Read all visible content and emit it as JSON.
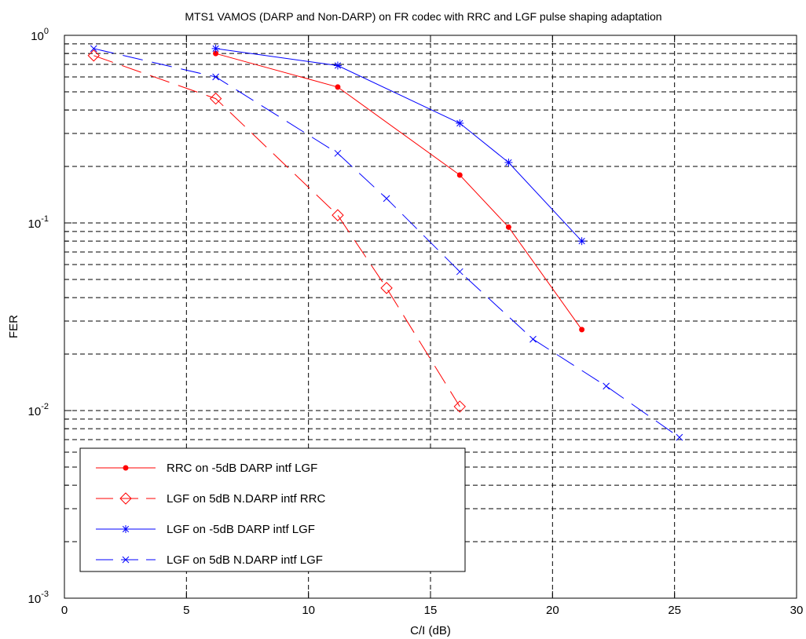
{
  "chart_data": {
    "type": "line",
    "title": "MTS1 VAMOS (DARP and Non-DARP) on FR codec with RRC and LGF pulse shaping adaptation",
    "xlabel": "C/I (dB)",
    "ylabel": "FER",
    "xlim": [
      0,
      30
    ],
    "ylim": [
      0.001,
      1
    ],
    "yscale": "log",
    "grid": true,
    "legend_position": "bottom-left",
    "x_ticks": [
      0,
      5,
      10,
      15,
      20,
      25,
      30
    ],
    "y_ticks": [
      {
        "value": 0.001,
        "base": "10",
        "exp": "-3"
      },
      {
        "value": 0.01,
        "base": "10",
        "exp": "-2"
      },
      {
        "value": 0.1,
        "base": "10",
        "exp": "-1"
      },
      {
        "value": 1,
        "base": "10",
        "exp": "0"
      }
    ],
    "series": [
      {
        "name": "RRC on -5dB DARP intf LGF",
        "color": "#ff0000",
        "line_style": "solid",
        "marker": "dot",
        "x": [
          6.2,
          11.2,
          16.2,
          18.2,
          21.2
        ],
        "y": [
          0.8,
          0.53,
          0.18,
          0.095,
          0.027
        ]
      },
      {
        "name": "LGF on 5dB N.DARP intf RRC",
        "color": "#ff0000",
        "line_style": "dashed",
        "marker": "diamond",
        "x": [
          1.2,
          6.2,
          11.2,
          13.2,
          16.2
        ],
        "y": [
          0.78,
          0.46,
          0.11,
          0.045,
          0.0105
        ]
      },
      {
        "name": "LGF on -5dB DARP intf LGF",
        "color": "#0000ff",
        "line_style": "solid",
        "marker": "star",
        "x": [
          6.2,
          11.2,
          16.2,
          18.2,
          21.2
        ],
        "y": [
          0.85,
          0.69,
          0.34,
          0.21,
          0.08
        ]
      },
      {
        "name": "LGF on 5dB N.DARP intf LGF",
        "color": "#0000ff",
        "line_style": "dashed",
        "marker": "x",
        "x": [
          1.2,
          6.2,
          11.2,
          13.2,
          16.2,
          19.2,
          22.2,
          25.2
        ],
        "y": [
          0.85,
          0.6,
          0.235,
          0.135,
          0.055,
          0.024,
          0.0135,
          0.0072
        ]
      }
    ]
  }
}
